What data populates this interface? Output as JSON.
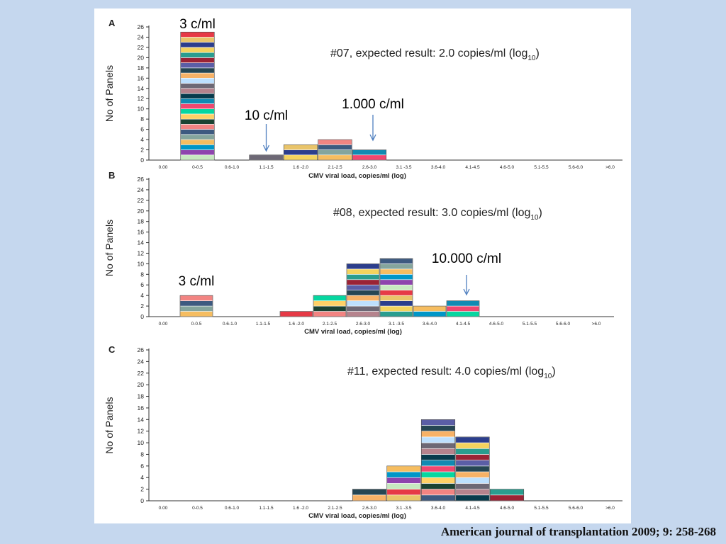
{
  "source": "American journal of transplantation 2009; 9: 258-268",
  "colors": {
    "background": "#c5d7ee",
    "axis": "#333333",
    "arrow": "#4f7fbf",
    "segment_palette": [
      "#5b5ea6",
      "#9b2335",
      "#2a9d8f",
      "#f4d35e",
      "#2c3e8c",
      "#e9c46a",
      "#e63946",
      "#c7e9c0",
      "#8e44ad",
      "#0096c7",
      "#f6bd60",
      "#84a59d",
      "#3d5a80",
      "#f28482",
      "#1b4332",
      "#ffd166",
      "#06d6a0",
      "#ef476f",
      "#118ab2",
      "#073b4c",
      "#b5838d",
      "#6d6875",
      "#bde0fe",
      "#f7b267",
      "#264653"
    ]
  },
  "chart_data": [
    {
      "type": "bar",
      "stacked": true,
      "panel_label": "A",
      "title_parts": {
        "main": "#07, expected result: 2.0 copies/ml (log",
        "sub": "10",
        "end": ")"
      },
      "xlabel": "CMV viral load, copies/ml (log)",
      "ylabel": "No of Panels",
      "ylim": [
        0,
        26
      ],
      "yticks": [
        0,
        2,
        4,
        6,
        8,
        10,
        12,
        14,
        16,
        18,
        20,
        22,
        24,
        26
      ],
      "categories": [
        "0.00",
        "0-0.5",
        "0.6-1.0",
        "1.1-1.5",
        "1.6 -2.0",
        "2.1-2.5",
        "2.6-3.0",
        "3.1 -3.5",
        "3.6-4.0",
        "4.1-4.5",
        "4.6-5.0",
        "5.1-5.5",
        "5.6-6.0",
        ">6.0"
      ],
      "values": [
        0,
        25,
        0,
        1,
        3,
        4,
        2,
        0,
        0,
        0,
        0,
        0,
        0,
        0
      ],
      "annotations": [
        {
          "text": "3 c/ml",
          "category": "0-0.5",
          "arrow": false
        },
        {
          "text": "10 c/ml",
          "category": "1.1-1.5",
          "arrow": true
        },
        {
          "text": "1.000 c/ml",
          "category": "2.6-3.0",
          "arrow": true
        }
      ]
    },
    {
      "type": "bar",
      "stacked": true,
      "panel_label": "B",
      "title_parts": {
        "main": "#08, expected result: 3.0 copies/ml (log",
        "sub": "10",
        "end": ")"
      },
      "xlabel": "CMV viral load, copies/ml (log)",
      "ylabel": "No of Panels",
      "ylim": [
        0,
        26
      ],
      "yticks": [
        0,
        2,
        4,
        6,
        8,
        10,
        12,
        14,
        16,
        18,
        20,
        22,
        24,
        26
      ],
      "categories": [
        "0.00",
        "0-0.5",
        "0.6-1.0",
        "1.1-1.5",
        "1.6 -2.0",
        "2.1-2.5",
        "2.6-3.0",
        "3.1 -3.5",
        "3.6-4.0",
        "4.1-4.5",
        "4.6-5.0",
        "5.1-5.5",
        "5.6-6.0",
        ">6.0"
      ],
      "values": [
        0,
        4,
        0,
        0,
        1,
        4,
        10,
        11,
        2,
        3,
        0,
        0,
        0,
        0
      ],
      "annotations": [
        {
          "text": "3 c/ml",
          "category": "0-0.5",
          "arrow": false
        },
        {
          "text": "10.000 c/ml",
          "category": "4.1-4.5",
          "arrow": true
        }
      ]
    },
    {
      "type": "bar",
      "stacked": true,
      "panel_label": "C",
      "title_parts": {
        "main": "#11, expected result: 4.0 copies/ml (log",
        "sub": "10",
        "end": ")"
      },
      "xlabel": "CMV viral load, copies/ml (log)",
      "ylabel": "No of Panels",
      "ylim": [
        0,
        26
      ],
      "yticks": [
        0,
        2,
        4,
        6,
        8,
        10,
        12,
        14,
        16,
        18,
        20,
        22,
        24,
        26
      ],
      "categories": [
        "0.00",
        "0-0.5",
        "0.6-1.0",
        "1.1-1.5",
        "1.6 -2.0",
        "2.1-2.5",
        "2.6-3.0",
        "3.1 -3.5",
        "3.6-4.0",
        "4.1-4.5",
        "4.6-5.0",
        "5.1-5.5",
        "5.6-6.0",
        ">6.0"
      ],
      "values": [
        0,
        0,
        0,
        0,
        0,
        0,
        2,
        6,
        14,
        11,
        2,
        0,
        0,
        0
      ],
      "annotations": []
    }
  ]
}
